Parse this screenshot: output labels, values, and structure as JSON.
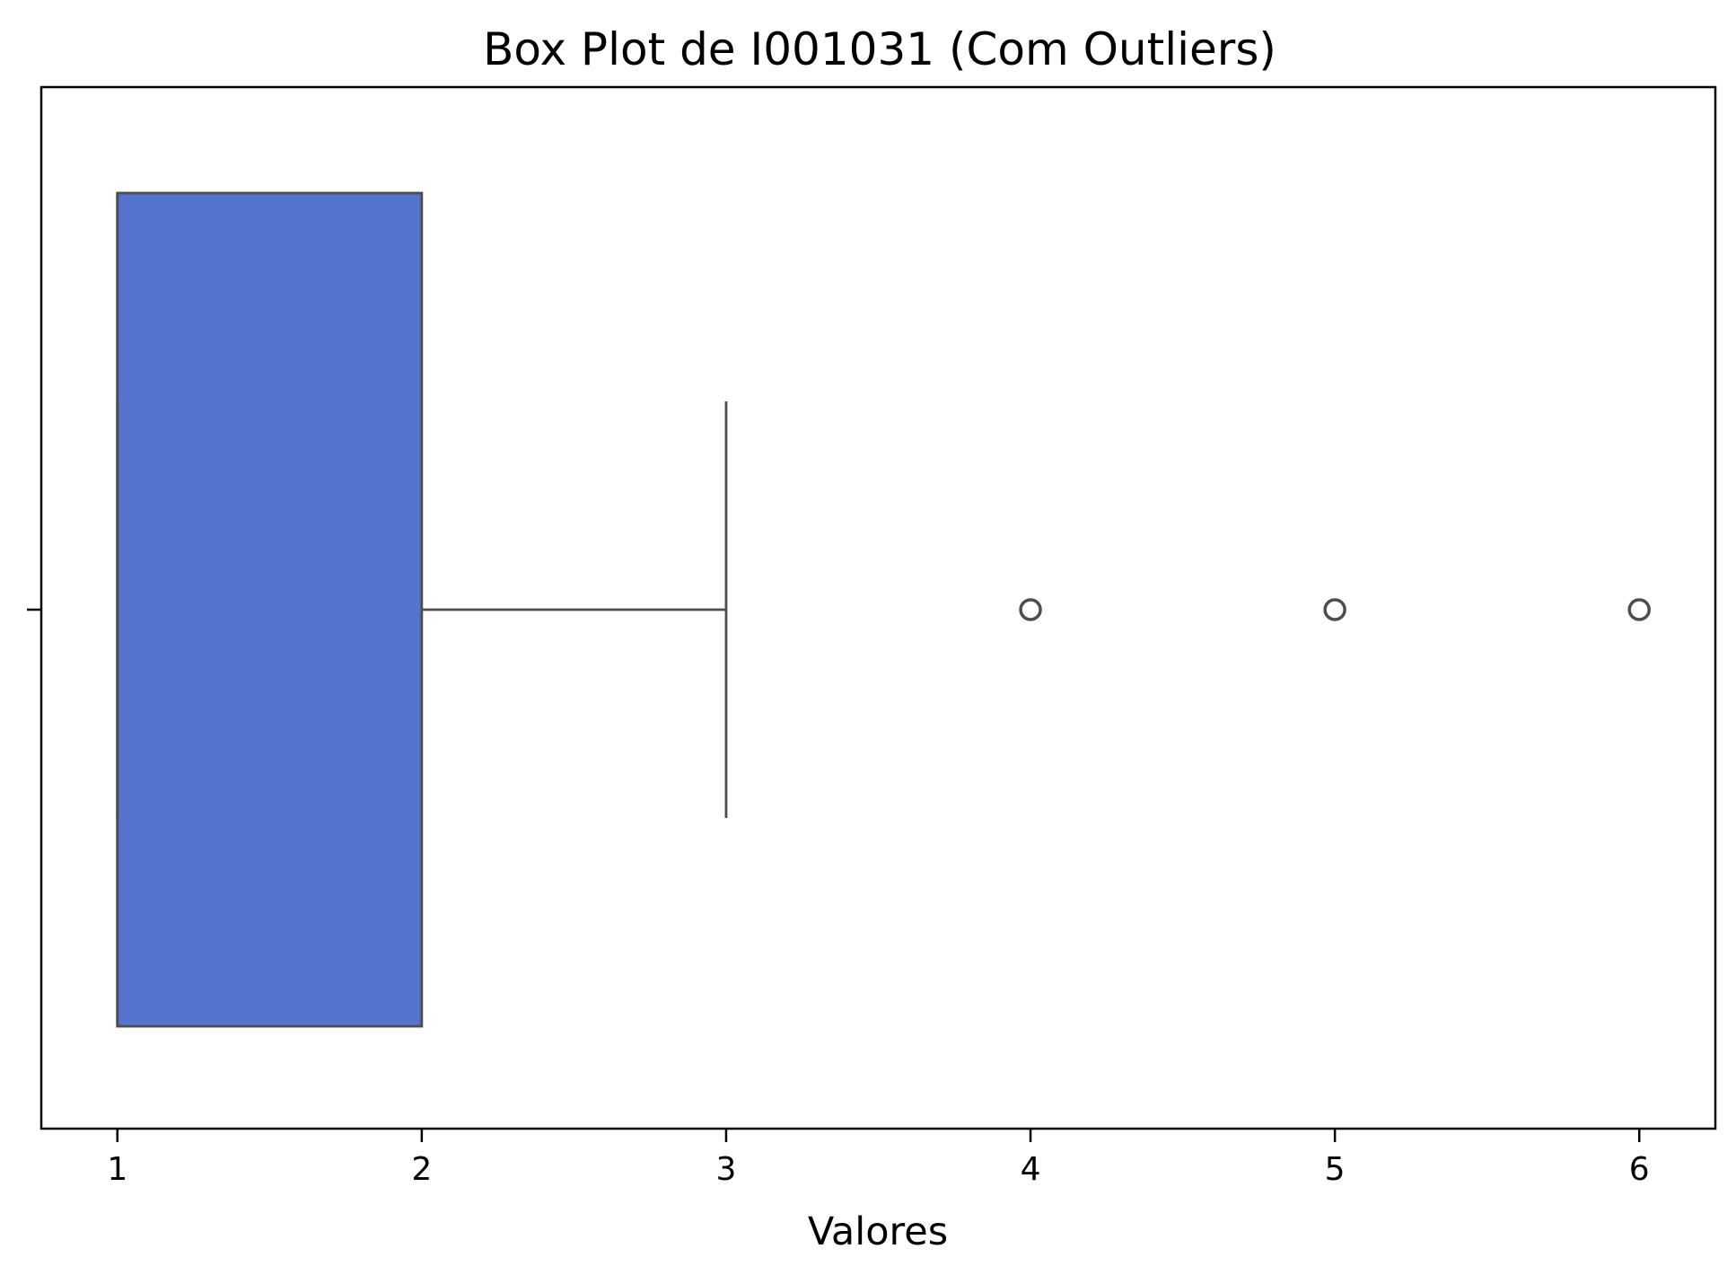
{
  "chart_data": {
    "type": "boxplot",
    "orientation": "horizontal",
    "title": "Box Plot de I001031 (Com Outliers)",
    "xlabel": "Valores",
    "ylabel": "",
    "xlim": [
      0.75,
      6.25
    ],
    "xticks": [
      1,
      2,
      3,
      4,
      5,
      6
    ],
    "xtick_labels": [
      "1",
      "2",
      "3",
      "4",
      "5",
      "6"
    ],
    "grid": false,
    "box": {
      "whisker_low": 1,
      "q1": 1,
      "median": 1,
      "q3": 2,
      "whisker_high": 3,
      "outliers": [
        4,
        5,
        6
      ]
    },
    "colors": {
      "box_fill": "#5574CD",
      "box_edge": "#4D4D4D",
      "axes": "#000000",
      "background": "#FFFFFF"
    }
  }
}
